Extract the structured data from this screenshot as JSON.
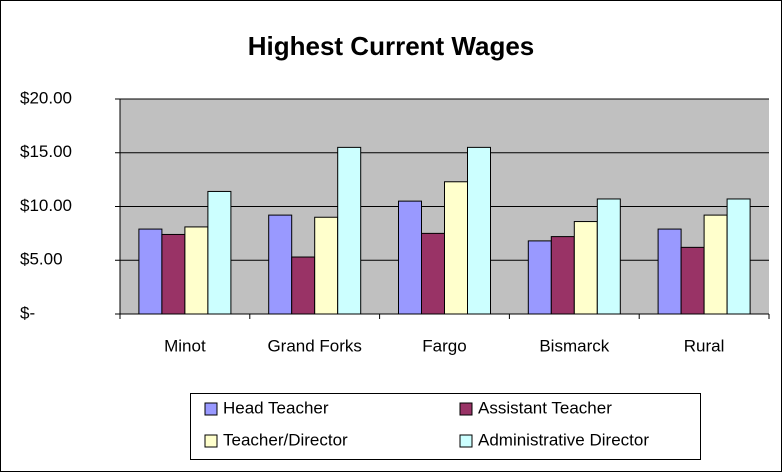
{
  "chart_data": {
    "type": "bar",
    "title": "Highest Current Wages",
    "categories": [
      "Minot",
      "Grand Forks",
      "Fargo",
      "Bismarck",
      "Rural"
    ],
    "series": [
      {
        "name": "Head Teacher",
        "color": "#9999ff",
        "values": [
          7.9,
          9.2,
          10.5,
          6.8,
          7.9
        ]
      },
      {
        "name": "Assistant Teacher",
        "color": "#993366",
        "values": [
          7.4,
          5.3,
          7.5,
          7.2,
          6.2
        ]
      },
      {
        "name": "Teacher/Director",
        "color": "#ffffcc",
        "values": [
          8.1,
          9.0,
          12.3,
          8.6,
          9.2
        ]
      },
      {
        "name": "Administrative Director",
        "color": "#ccffff",
        "values": [
          11.4,
          15.5,
          15.5,
          10.7,
          10.7
        ]
      }
    ],
    "ylim": [
      0,
      20
    ],
    "yticks": [
      {
        "value": 0,
        "label": "$-"
      },
      {
        "value": 5,
        "label": "$5.00"
      },
      {
        "value": 10,
        "label": "$10.00"
      },
      {
        "value": 15,
        "label": "$15.00"
      },
      {
        "value": 20,
        "label": "$20.00"
      }
    ],
    "grid": true,
    "legend": "bottom",
    "plot_background": "#c0c0c0"
  }
}
